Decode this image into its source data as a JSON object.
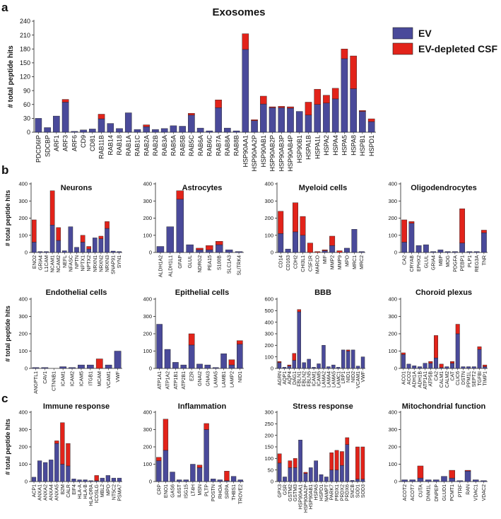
{
  "colors": {
    "ev": "#4a4a9a",
    "csf": "#e2231a",
    "axis": "#222222"
  },
  "chart_data": [
    {
      "panel": "a",
      "title": "Exosomes",
      "type": "bar",
      "ylabel": "# total peptide hits",
      "ylim": [
        0,
        240
      ],
      "yticks": [
        0,
        30,
        60,
        90,
        120,
        150,
        180,
        210,
        240
      ],
      "legend": [
        "EV",
        "EV-depleted CSF"
      ],
      "categories": [
        "PDCD6IP",
        "SDCBP",
        "ARF1",
        "ARF3",
        "ARF6",
        "CD9",
        "CD81",
        "RAB11B",
        "RAB14",
        "RAB18",
        "RAB1A",
        "RAB1C",
        "RAB2A",
        "RAB2B",
        "RAB3A",
        "RAB5A",
        "RAB5B",
        "RAB5C",
        "RAB6A",
        "RAB6C",
        "RAB7A",
        "RAB8A",
        "RAB8B",
        "HSP90AA1",
        "HSP90AA2P",
        "HSP90AB1",
        "HSP90AB2P",
        "HSP90AB3P",
        "HSP90AB4P",
        "HSP90B1",
        "HSPA1B",
        "HSPA1L",
        "HSPA2",
        "HSPA4",
        "HSPA5",
        "HSPA8",
        "HSPB1",
        "HSPD1"
      ],
      "series": [
        {
          "name": "EV",
          "values": [
            30,
            10,
            35,
            65,
            2,
            5,
            7,
            29,
            19,
            8,
            42,
            6,
            12,
            6,
            8,
            14,
            13,
            37,
            9,
            3,
            53,
            9,
            3,
            179,
            25,
            61,
            53,
            53,
            52,
            45,
            37,
            60,
            63,
            72,
            159,
            94,
            45,
            23
          ]
        },
        {
          "name": "EV-depleted CSF",
          "values": [
            0,
            0,
            0,
            6,
            0,
            0,
            0,
            10,
            0,
            0,
            0,
            0,
            4,
            0,
            0,
            0,
            0,
            4,
            0,
            0,
            17,
            0,
            0,
            34,
            2,
            17,
            2,
            3,
            3,
            0,
            28,
            33,
            17,
            23,
            21,
            71,
            2,
            6
          ]
        }
      ]
    },
    {
      "panel": "b",
      "title": "Neurons",
      "type": "bar",
      "ylabel": "# total peptide hits",
      "ylim": [
        0,
        400
      ],
      "yticks": [
        0,
        100,
        200,
        300,
        400
      ],
      "categories": [
        "ENO2",
        "GRIA4",
        "L1CAM",
        "NCAM1",
        "NCAM2",
        "NEFL",
        "NFASC",
        "NPTN",
        "NPTX1",
        "NPTX2",
        "NRXN1",
        "NRXN2",
        "NRXN3",
        "SNAP91",
        "SYN1"
      ],
      "series": [
        {
          "name": "EV",
          "values": [
            60,
            5,
            5,
            160,
            70,
            10,
            150,
            30,
            60,
            20,
            85,
            80,
            140,
            8,
            5
          ]
        },
        {
          "name": "EV-depleted CSF",
          "values": [
            130,
            0,
            0,
            200,
            75,
            0,
            0,
            0,
            40,
            15,
            0,
            15,
            40,
            0,
            0
          ]
        }
      ]
    },
    {
      "panel": "b",
      "title": "Astrocytes",
      "type": "bar",
      "ylim": [
        0,
        400
      ],
      "yticks": [
        0,
        100,
        200,
        300,
        400
      ],
      "categories": [
        "ALDH1A2",
        "ALDH1L1",
        "GFAP",
        "GLUL",
        "NDRG2",
        "PEA15",
        "S100B",
        "SLC1A3",
        "SLITRK4"
      ],
      "series": [
        {
          "name": "EV",
          "values": [
            35,
            150,
            310,
            45,
            15,
            15,
            45,
            15,
            5
          ]
        },
        {
          "name": "EV-depleted CSF",
          "values": [
            0,
            0,
            50,
            0,
            10,
            25,
            20,
            0,
            0
          ]
        }
      ]
    },
    {
      "panel": "b",
      "title": "Myeloid cells",
      "type": "bar",
      "ylim": [
        0,
        400
      ],
      "yticks": [
        0,
        100,
        200,
        300,
        400
      ],
      "categories": [
        "CD14",
        "CD163",
        "CDH2",
        "CHI3L1",
        "CSF1R",
        "MARCO",
        "MIF",
        "MMP2",
        "MMP9",
        "MPO",
        "MRC1",
        "MRC2"
      ],
      "series": [
        {
          "name": "EV",
          "values": [
            110,
            20,
            120,
            100,
            0,
            0,
            10,
            40,
            0,
            25,
            135,
            5
          ]
        },
        {
          "name": "EV-depleted CSF",
          "values": [
            130,
            0,
            170,
            110,
            55,
            5,
            5,
            55,
            10,
            0,
            0,
            0
          ]
        }
      ]
    },
    {
      "panel": "b",
      "title": "Oligodendrocytes",
      "type": "bar",
      "ylim": [
        0,
        400
      ],
      "yticks": [
        0,
        100,
        200,
        300,
        400
      ],
      "categories": [
        "CA2",
        "CRYAB",
        "EPHX2",
        "GLUL",
        "GRIA4",
        "MBP",
        "MOG",
        "PDGFA",
        "PEBP1",
        "PLP1",
        "REG3A",
        "TNR"
      ],
      "series": [
        {
          "name": "EV",
          "values": [
            60,
            170,
            40,
            45,
            5,
            15,
            5,
            5,
            55,
            5,
            5,
            115
          ]
        },
        {
          "name": "EV-depleted CSF",
          "values": [
            130,
            10,
            0,
            0,
            0,
            0,
            0,
            0,
            200,
            0,
            0,
            15
          ]
        }
      ]
    },
    {
      "panel": "b",
      "title": "Endothelial cells",
      "type": "bar",
      "ylabel": "# total peptide hits",
      "ylim": [
        0,
        400
      ],
      "yticks": [
        0,
        100,
        200,
        300,
        400
      ],
      "categories": [
        "ANGPTL1",
        "CAV1",
        "CTNNB1",
        "ICAM1",
        "ICAM2",
        "ICAM5",
        "ITGB1",
        "MCAM",
        "VCAM1",
        "VWF"
      ],
      "series": [
        {
          "name": "EV",
          "values": [
            5,
            5,
            0,
            10,
            5,
            20,
            20,
            0,
            20,
            100
          ]
        },
        {
          "name": "EV-depleted CSF",
          "values": [
            0,
            0,
            0,
            0,
            0,
            0,
            0,
            55,
            0,
            0
          ]
        }
      ]
    },
    {
      "panel": "b",
      "title": "Epithelial cells",
      "type": "bar",
      "ylim": [
        0,
        400
      ],
      "yticks": [
        0,
        100,
        200,
        300,
        400
      ],
      "categories": [
        "ATP1A1",
        "ATP1A2",
        "ATP1B1",
        "ATP2B1",
        "EZR",
        "GNAI2",
        "GNAI3",
        "LAMA5",
        "LAMB1",
        "LAMP2",
        "NID1"
      ],
      "series": [
        {
          "name": "EV",
          "values": [
            255,
            110,
            35,
            20,
            135,
            25,
            20,
            5,
            85,
            20,
            140
          ]
        },
        {
          "name": "EV-depleted CSF",
          "values": [
            0,
            0,
            0,
            0,
            65,
            0,
            0,
            0,
            0,
            30,
            20
          ]
        }
      ]
    },
    {
      "panel": "b",
      "title": "BBB",
      "type": "bar",
      "ylim": [
        0,
        600
      ],
      "yticks": [
        0,
        100,
        200,
        300,
        400,
        500,
        600
      ],
      "categories": [
        "AGRN",
        "AQP1",
        "AQP4",
        "DAG1",
        "FBLN1",
        "FBLN2",
        "FBLN5",
        "ICAM1",
        "ICAM5",
        "LAMA2",
        "LAMA4",
        "LAMA5",
        "LAMC1",
        "LRP1",
        "NID1",
        "NID2",
        "VCAM1",
        "VWF"
      ],
      "series": [
        {
          "name": "EV",
          "values": [
            50,
            10,
            20,
            70,
            490,
            50,
            80,
            10,
            40,
            200,
            15,
            30,
            10,
            160,
            150,
            160,
            20,
            100
          ]
        },
        {
          "name": "EV-depleted CSF",
          "values": [
            10,
            0,
            10,
            60,
            20,
            0,
            0,
            0,
            0,
            0,
            0,
            0,
            0,
            0,
            10,
            0,
            0,
            0
          ]
        }
      ]
    },
    {
      "panel": "b",
      "title": "Choroid plexus",
      "type": "bar",
      "ylim": [
        0,
        400
      ],
      "yticks": [
        0,
        100,
        200,
        300,
        400
      ],
      "categories": [
        "ACO1",
        "ACO2",
        "ADH1A",
        "ADH1B",
        "ATP1A1",
        "ATP5B",
        "CA2",
        "CALM1",
        "CALM2",
        "CAT",
        "CLIC6",
        "DSTN",
        "PPM1L",
        "SEPT2",
        "TGFBI",
        "TIMP1"
      ],
      "series": [
        {
          "name": "EV",
          "values": [
            80,
            25,
            15,
            10,
            30,
            30,
            60,
            5,
            10,
            30,
            200,
            10,
            10,
            10,
            110,
            10
          ]
        },
        {
          "name": "EV-depleted CSF",
          "values": [
            10,
            0,
            0,
            0,
            0,
            10,
            130,
            20,
            0,
            10,
            55,
            0,
            0,
            0,
            15,
            10
          ]
        }
      ]
    },
    {
      "panel": "c",
      "title": "Immune response",
      "type": "bar",
      "ylabel": "# total peptide hits",
      "ylim": [
        0,
        400
      ],
      "yticks": [
        0,
        100,
        200,
        300,
        400
      ],
      "categories": [
        "ACP1",
        "ANXA1",
        "ANXA2",
        "ANXA4",
        "ANXA5",
        "B2M",
        "CALR",
        "EIF4",
        "HLA-A",
        "HLA-B",
        "HLA-DRA",
        "ICOSLG",
        "MBL2",
        "MPO",
        "NT5C2",
        "PSMA7"
      ],
      "series": [
        {
          "name": "EV",
          "values": [
            25,
            120,
            110,
            125,
            220,
            100,
            90,
            15,
            10,
            10,
            5,
            5,
            20,
            35,
            20,
            20
          ]
        },
        {
          "name": "EV-depleted CSF",
          "values": [
            0,
            0,
            0,
            0,
            15,
            240,
            130,
            0,
            0,
            0,
            0,
            30,
            0,
            0,
            0,
            0
          ]
        }
      ]
    },
    {
      "panel": "c",
      "title": "Inflammation",
      "type": "bar",
      "ylim": [
        0,
        400
      ],
      "yticks": [
        0,
        100,
        200,
        300,
        400
      ],
      "categories": [
        "CRP",
        "ENO1",
        "GAS6",
        "IL6ST",
        "ISG15",
        "LT4H",
        "MSN",
        "PLTP",
        "POSTN",
        "RHOA",
        "SIRPA",
        "THBS1",
        "TROVE2"
      ],
      "series": [
        {
          "name": "EV",
          "values": [
            120,
            180,
            55,
            10,
            10,
            100,
            80,
            300,
            15,
            10,
            5,
            30,
            10
          ]
        },
        {
          "name": "EV-depleted CSF",
          "values": [
            20,
            180,
            0,
            0,
            0,
            0,
            15,
            35,
            0,
            0,
            55,
            0,
            0
          ]
        }
      ]
    },
    {
      "panel": "c",
      "title": "Stress response",
      "type": "bar",
      "ylim": [
        0,
        300
      ],
      "yticks": [
        0,
        50,
        100,
        150,
        200,
        250,
        300
      ],
      "categories": [
        "GPX3",
        "GSR",
        "GSTM2",
        "GSTM3",
        "HSP90AA1",
        "HSP90AA2P",
        "HSP90AB1",
        "HSPA5",
        "HSPD1",
        "NAMPT",
        "PARK7",
        "PRDX1",
        "PRDX2",
        "PRDX6",
        "SNCB",
        "SOD1",
        "SOD3"
      ],
      "series": [
        {
          "name": "EV",
          "values": [
            80,
            20,
            60,
            60,
            180,
            35,
            60,
            90,
            30,
            20,
            50,
            50,
            70,
            160,
            5,
            10,
            10
          ]
        },
        {
          "name": "EV-depleted CSF",
          "values": [
            40,
            0,
            30,
            40,
            0,
            5,
            0,
            0,
            0,
            0,
            75,
            85,
            60,
            30,
            0,
            140,
            140
          ]
        }
      ]
    },
    {
      "panel": "c",
      "title": "Mitochondrial function",
      "type": "bar",
      "ylim": [
        0,
        400
      ],
      "yticks": [
        0,
        100,
        200,
        300,
        400
      ],
      "categories": [
        "ACOT2",
        "ACOT7",
        "CUTA",
        "DNM1L",
        "DNPEP",
        "GLUD1",
        "PCMT1",
        "PTRF",
        "RAN",
        "VDAC1",
        "VDAC2"
      ],
      "series": [
        {
          "name": "EV",
          "values": [
            10,
            10,
            20,
            10,
            10,
            30,
            20,
            5,
            60,
            10,
            5
          ]
        },
        {
          "name": "EV-depleted CSF",
          "values": [
            0,
            0,
            70,
            0,
            0,
            0,
            45,
            0,
            5,
            0,
            0
          ]
        }
      ]
    }
  ],
  "panel_labels": {
    "a": "a",
    "b": "b",
    "c": "c"
  }
}
